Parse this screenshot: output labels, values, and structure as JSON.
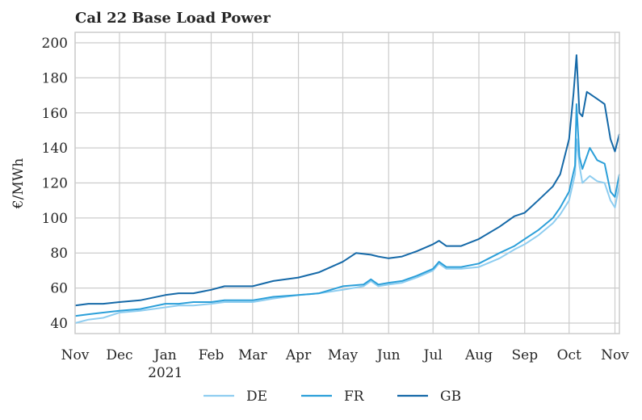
{
  "chart_data": {
    "type": "line",
    "title": "Cal 22 Base Load Power",
    "xlabel": "",
    "ylabel": "€/MWh",
    "ylim": [
      34,
      206
    ],
    "yticks": [
      40,
      60,
      80,
      100,
      120,
      140,
      160,
      180,
      200
    ],
    "x_range": [
      "2020-11-01",
      "2021-11-04"
    ],
    "xticks": [
      {
        "date": "2020-11-01",
        "label": "Nov"
      },
      {
        "date": "2020-12-01",
        "label": "Dec"
      },
      {
        "date": "2021-01-01",
        "label": "Jan",
        "sublabel": "2021"
      },
      {
        "date": "2021-02-01",
        "label": "Feb"
      },
      {
        "date": "2021-03-01",
        "label": "Mar"
      },
      {
        "date": "2021-04-01",
        "label": "Apr"
      },
      {
        "date": "2021-05-01",
        "label": "May"
      },
      {
        "date": "2021-06-01",
        "label": "Jun"
      },
      {
        "date": "2021-07-01",
        "label": "Jul"
      },
      {
        "date": "2021-08-01",
        "label": "Aug"
      },
      {
        "date": "2021-09-01",
        "label": "Sep"
      },
      {
        "date": "2021-10-01",
        "label": "Oct"
      },
      {
        "date": "2021-11-01",
        "label": "Nov"
      }
    ],
    "grid": true,
    "legend_position": "bottom-center",
    "series": [
      {
        "name": "DE",
        "color": "#8ecdf0",
        "points": [
          [
            "2020-11-01",
            40
          ],
          [
            "2020-11-10",
            42
          ],
          [
            "2020-11-20",
            43
          ],
          [
            "2020-12-01",
            46
          ],
          [
            "2020-12-15",
            47
          ],
          [
            "2021-01-01",
            49
          ],
          [
            "2021-01-10",
            50
          ],
          [
            "2021-01-20",
            50
          ],
          [
            "2021-02-01",
            51
          ],
          [
            "2021-02-10",
            52
          ],
          [
            "2021-02-20",
            52
          ],
          [
            "2021-03-01",
            52
          ],
          [
            "2021-03-15",
            54
          ],
          [
            "2021-04-01",
            56
          ],
          [
            "2021-04-15",
            57
          ],
          [
            "2021-05-01",
            59
          ],
          [
            "2021-05-15",
            61
          ],
          [
            "2021-05-20",
            64
          ],
          [
            "2021-05-25",
            61
          ],
          [
            "2021-06-01",
            62
          ],
          [
            "2021-06-10",
            63
          ],
          [
            "2021-06-20",
            66
          ],
          [
            "2021-07-01",
            70
          ],
          [
            "2021-07-05",
            74
          ],
          [
            "2021-07-10",
            71
          ],
          [
            "2021-07-20",
            71
          ],
          [
            "2021-08-01",
            72
          ],
          [
            "2021-08-15",
            77
          ],
          [
            "2021-08-25",
            82
          ],
          [
            "2021-09-01",
            85
          ],
          [
            "2021-09-10",
            90
          ],
          [
            "2021-09-20",
            97
          ],
          [
            "2021-09-25",
            102
          ],
          [
            "2021-10-01",
            110
          ],
          [
            "2021-10-05",
            125
          ],
          [
            "2021-10-06",
            145
          ],
          [
            "2021-10-08",
            130
          ],
          [
            "2021-10-10",
            120
          ],
          [
            "2021-10-15",
            124
          ],
          [
            "2021-10-20",
            121
          ],
          [
            "2021-10-25",
            120
          ],
          [
            "2021-10-29",
            110
          ],
          [
            "2021-11-01",
            106
          ],
          [
            "2021-11-04",
            119
          ]
        ]
      },
      {
        "name": "FR",
        "color": "#2b9fd9",
        "points": [
          [
            "2020-11-01",
            44
          ],
          [
            "2020-11-10",
            45
          ],
          [
            "2020-11-20",
            46
          ],
          [
            "2020-12-01",
            47
          ],
          [
            "2020-12-15",
            48
          ],
          [
            "2021-01-01",
            51
          ],
          [
            "2021-01-10",
            51
          ],
          [
            "2021-01-20",
            52
          ],
          [
            "2021-02-01",
            52
          ],
          [
            "2021-02-10",
            53
          ],
          [
            "2021-02-20",
            53
          ],
          [
            "2021-03-01",
            53
          ],
          [
            "2021-03-15",
            55
          ],
          [
            "2021-04-01",
            56
          ],
          [
            "2021-04-15",
            57
          ],
          [
            "2021-05-01",
            61
          ],
          [
            "2021-05-15",
            62
          ],
          [
            "2021-05-20",
            65
          ],
          [
            "2021-05-25",
            62
          ],
          [
            "2021-06-01",
            63
          ],
          [
            "2021-06-10",
            64
          ],
          [
            "2021-06-20",
            67
          ],
          [
            "2021-07-01",
            71
          ],
          [
            "2021-07-05",
            75
          ],
          [
            "2021-07-10",
            72
          ],
          [
            "2021-07-20",
            72
          ],
          [
            "2021-08-01",
            74
          ],
          [
            "2021-08-15",
            80
          ],
          [
            "2021-08-25",
            84
          ],
          [
            "2021-09-01",
            88
          ],
          [
            "2021-09-10",
            93
          ],
          [
            "2021-09-20",
            100
          ],
          [
            "2021-09-25",
            106
          ],
          [
            "2021-10-01",
            115
          ],
          [
            "2021-10-05",
            130
          ],
          [
            "2021-10-06",
            165
          ],
          [
            "2021-10-08",
            135
          ],
          [
            "2021-10-10",
            128
          ],
          [
            "2021-10-15",
            140
          ],
          [
            "2021-10-20",
            133
          ],
          [
            "2021-10-25",
            131
          ],
          [
            "2021-10-29",
            115
          ],
          [
            "2021-11-01",
            112
          ],
          [
            "2021-11-04",
            125
          ]
        ]
      },
      {
        "name": "GB",
        "color": "#1569a8",
        "points": [
          [
            "2020-11-01",
            50
          ],
          [
            "2020-11-10",
            51
          ],
          [
            "2020-11-20",
            51
          ],
          [
            "2020-12-01",
            52
          ],
          [
            "2020-12-15",
            53
          ],
          [
            "2021-01-01",
            56
          ],
          [
            "2021-01-10",
            57
          ],
          [
            "2021-01-20",
            57
          ],
          [
            "2021-02-01",
            59
          ],
          [
            "2021-02-10",
            61
          ],
          [
            "2021-02-20",
            61
          ],
          [
            "2021-03-01",
            61
          ],
          [
            "2021-03-15",
            64
          ],
          [
            "2021-04-01",
            66
          ],
          [
            "2021-04-15",
            69
          ],
          [
            "2021-05-01",
            75
          ],
          [
            "2021-05-10",
            80
          ],
          [
            "2021-05-20",
            79
          ],
          [
            "2021-05-25",
            78
          ],
          [
            "2021-06-01",
            77
          ],
          [
            "2021-06-10",
            78
          ],
          [
            "2021-06-20",
            81
          ],
          [
            "2021-07-01",
            85
          ],
          [
            "2021-07-05",
            87
          ],
          [
            "2021-07-10",
            84
          ],
          [
            "2021-07-20",
            84
          ],
          [
            "2021-08-01",
            88
          ],
          [
            "2021-08-15",
            95
          ],
          [
            "2021-08-25",
            101
          ],
          [
            "2021-09-01",
            103
          ],
          [
            "2021-09-10",
            110
          ],
          [
            "2021-09-20",
            118
          ],
          [
            "2021-09-25",
            125
          ],
          [
            "2021-10-01",
            145
          ],
          [
            "2021-10-04",
            171
          ],
          [
            "2021-10-06",
            193
          ],
          [
            "2021-10-08",
            160
          ],
          [
            "2021-10-10",
            158
          ],
          [
            "2021-10-13",
            172
          ],
          [
            "2021-10-20",
            168
          ],
          [
            "2021-10-25",
            165
          ],
          [
            "2021-10-29",
            145
          ],
          [
            "2021-11-01",
            138
          ],
          [
            "2021-11-04",
            148
          ]
        ]
      }
    ]
  }
}
